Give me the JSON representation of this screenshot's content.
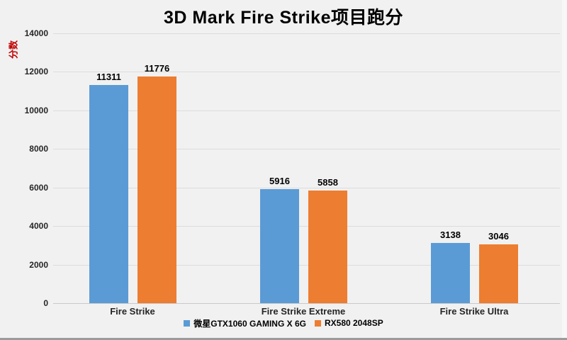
{
  "page": {
    "background_color": "#F1F1F1",
    "bottom_bar_color": "#9B9B9B"
  },
  "chart_data": {
    "type": "bar",
    "title": "3D Mark Fire Strike项目跑分",
    "xlabel": "",
    "ylabel": "分数",
    "ylabel_color": "#C00000",
    "categories": [
      "Fire Strike",
      "Fire Strike Extreme",
      "Fire Strike Ultra"
    ],
    "series": [
      {
        "name": "微星GTX1060 GAMING X 6G",
        "color": "#5B9BD5",
        "values": [
          11311,
          5916,
          3138
        ]
      },
      {
        "name": "RX580 2048SP",
        "color": "#ED7D31",
        "values": [
          11776,
          5858,
          3046
        ]
      }
    ],
    "ylim": [
      0,
      14000
    ],
    "yticks": [
      0,
      2000,
      4000,
      6000,
      8000,
      10000,
      12000,
      14000
    ],
    "grid": true,
    "gridline_color": "#DCDCDC",
    "axisline_color": "#C9C9C9",
    "legend_position": "bottom",
    "data_labels": true
  }
}
